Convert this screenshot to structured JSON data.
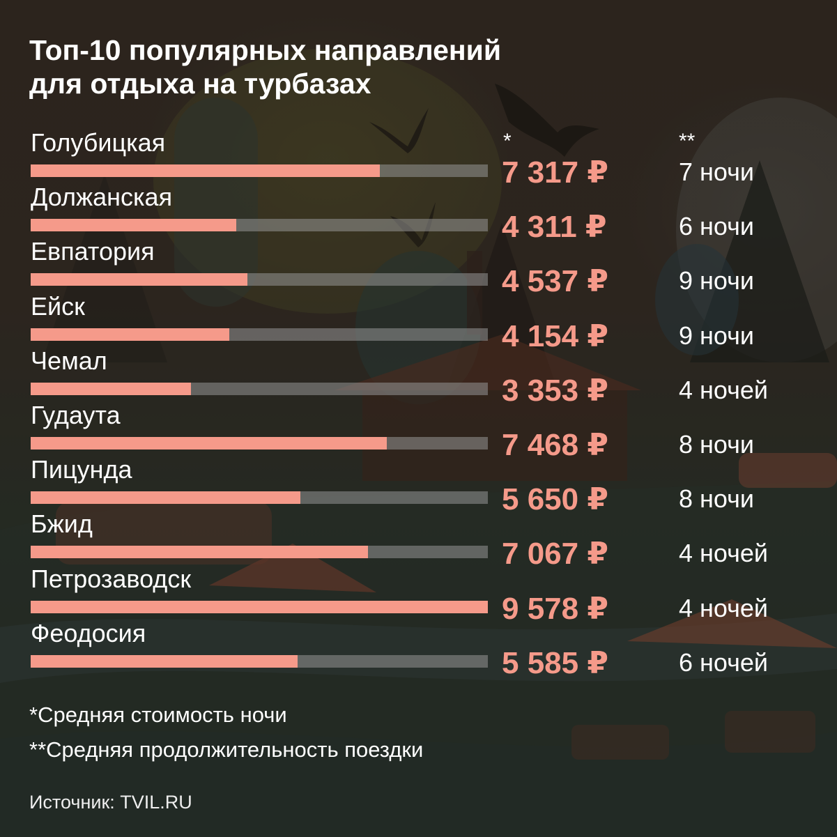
{
  "title_lines": [
    "Топ-10 популярных направлений",
    "для отдыха на турбазах"
  ],
  "col_headers": {
    "price": "*",
    "nights": "**"
  },
  "chart_data": {
    "type": "bar",
    "orientation": "horizontal",
    "categories": [
      "Голубицкая",
      "Должанская",
      "Евпатория",
      "Ейск",
      "Чемал",
      "Гудаута",
      "Пицунда",
      "Бжид",
      "Петрозаводск",
      "Феодосия"
    ],
    "values": [
      7317,
      4311,
      4537,
      4154,
      3353,
      7468,
      5650,
      7067,
      9578,
      5585
    ],
    "value_labels": [
      "7 317 ₽",
      "4 311 ₽",
      "4 537 ₽",
      "4 154 ₽",
      "3 353 ₽",
      "7 468 ₽",
      "5 650 ₽",
      "7 067 ₽",
      "9 578 ₽",
      "5 585 ₽"
    ],
    "nights": [
      "7 ночи",
      "6 ночи",
      "9 ночи",
      "9 ночи",
      "4 ночей",
      "8 ночи",
      "8 ночи",
      "4 ночей",
      "4 ночей",
      "6 ночей"
    ],
    "xlim": [
      0,
      9578
    ],
    "bar_color": "#f59a8a",
    "track_color": "#969696",
    "grid": false
  },
  "notes": [
    "*Средняя стоимость ночи",
    "**Средняя продолжительность поездки"
  ],
  "source": "Источник: TVIL.RU"
}
